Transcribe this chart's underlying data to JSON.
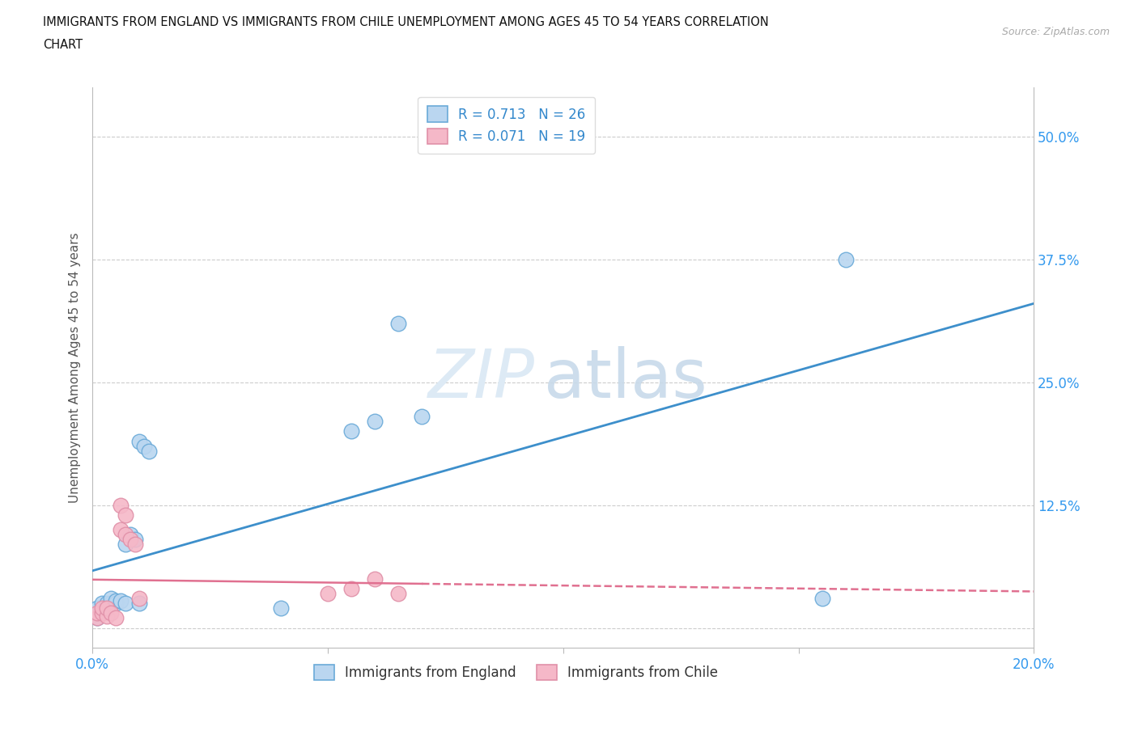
{
  "title_line1": "IMMIGRANTS FROM ENGLAND VS IMMIGRANTS FROM CHILE UNEMPLOYMENT AMONG AGES 45 TO 54 YEARS CORRELATION",
  "title_line2": "CHART",
  "source": "Source: ZipAtlas.com",
  "ylabel": "Unemployment Among Ages 45 to 54 years",
  "xlim": [
    0.0,
    0.2
  ],
  "ylim": [
    -0.02,
    0.55
  ],
  "xticks": [
    0.0,
    0.05,
    0.1,
    0.15,
    0.2
  ],
  "xticklabels": [
    "0.0%",
    "",
    "",
    "",
    "20.0%"
  ],
  "yticks": [
    0.0,
    0.125,
    0.25,
    0.375,
    0.5
  ],
  "yticklabels": [
    "",
    "12.5%",
    "25.0%",
    "37.5%",
    "50.0%"
  ],
  "grid_color": "#cccccc",
  "background_color": "#ffffff",
  "england_color": "#bad6f0",
  "england_edge_color": "#6aaad8",
  "england_line_color": "#3d8fcb",
  "chile_color": "#f5b8c8",
  "chile_edge_color": "#e090a8",
  "chile_line_color": "#e07090",
  "legend_R1": "R = 0.713",
  "legend_N1": "N = 26",
  "legend_R2": "R = 0.071",
  "legend_N2": "N = 19",
  "england_x": [
    0.001,
    0.001,
    0.002,
    0.002,
    0.003,
    0.003,
    0.004,
    0.004,
    0.005,
    0.005,
    0.006,
    0.007,
    0.007,
    0.008,
    0.009,
    0.01,
    0.01,
    0.011,
    0.012,
    0.04,
    0.055,
    0.06,
    0.065,
    0.07,
    0.155,
    0.16
  ],
  "england_y": [
    0.01,
    0.02,
    0.015,
    0.025,
    0.02,
    0.025,
    0.025,
    0.03,
    0.025,
    0.028,
    0.028,
    0.025,
    0.085,
    0.095,
    0.09,
    0.19,
    0.025,
    0.185,
    0.18,
    0.02,
    0.2,
    0.21,
    0.31,
    0.215,
    0.03,
    0.375
  ],
  "chile_x": [
    0.001,
    0.001,
    0.002,
    0.002,
    0.003,
    0.003,
    0.004,
    0.005,
    0.006,
    0.006,
    0.007,
    0.007,
    0.008,
    0.009,
    0.01,
    0.05,
    0.055,
    0.06,
    0.065
  ],
  "chile_y": [
    0.01,
    0.015,
    0.015,
    0.02,
    0.012,
    0.02,
    0.015,
    0.01,
    0.1,
    0.125,
    0.115,
    0.095,
    0.09,
    0.085,
    0.03,
    0.035,
    0.04,
    0.05,
    0.035
  ]
}
